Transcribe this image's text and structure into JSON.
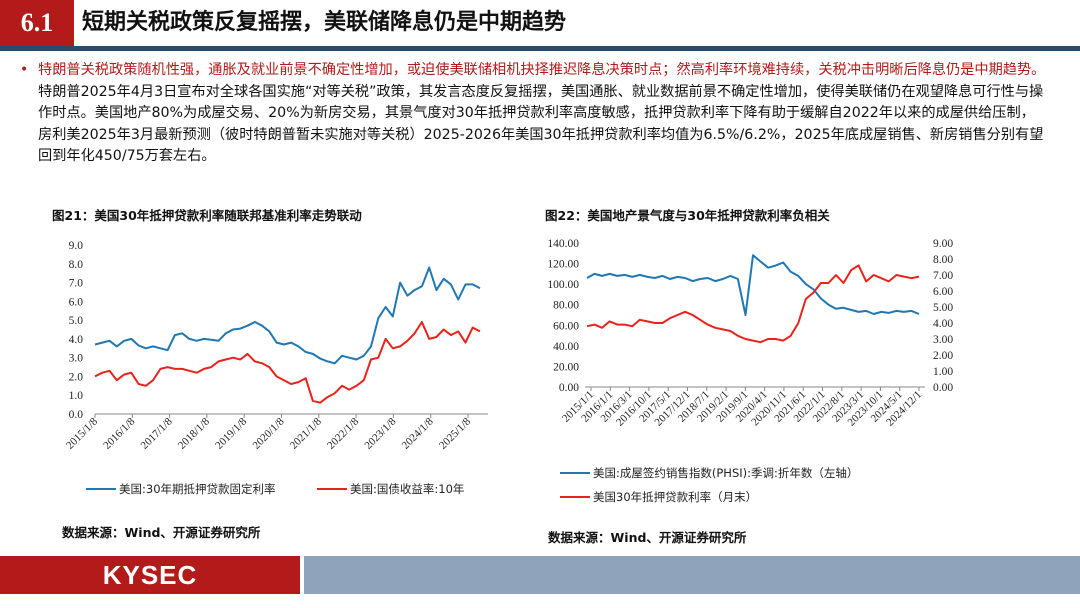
{
  "header": {
    "section_number": "6.1",
    "title": "短期关税政策反复摇摆，美联储降息仍是中期趋势"
  },
  "paragraph": {
    "bullet": "•",
    "highlight": "特朗普关税政策随机性强，通胀及就业前景不确定性增加，或迫使美联储相机抉择推迟降息决策时点；然高利率环境难持续，关税冲击明晰后降息仍是中期趋势。",
    "rest": "特朗普2025年4月3日宣布对全球各国实施“对等关税”政策，其发言态度反复摇摆，美国通胀、就业数据前景不确定性增加，使得美联储仍在观望降息可行性与操作时点。美国地产80%为成屋交易、20%为新房交易，其景气度对30年抵押贷款利率高度敏感，抵押贷款利率下降有助于缓解自2022年以来的成屋供给压制，房利美2025年3月最新预测（彼时特朗普暂未实施对等关税）2025-2026年美国30年抵押贷款利率均值为6.5%/6.2%，2025年底成屋销售、新房销售分别有望回到年化450/75万套左右。"
  },
  "figure21": {
    "title": "图21：美国30年抵押贷款利率随联邦基准利率走势联动",
    "source": "数据来源：Wind、开源证券研究所"
  },
  "figure22": {
    "title": "图22：美国地产景气度与30年抵押贷款利率负相关",
    "source": "数据来源：Wind、开源证券研究所"
  },
  "footer": {
    "logo": "KYSEC"
  },
  "colors": {
    "blue": "#1f77b4",
    "red": "#e8231b",
    "brand_red": "#b31b1b",
    "navy": "#2b4a6f"
  },
  "chart_data": [
    {
      "type": "line",
      "title": "图21：美国30年抵押贷款利率随联邦基准利率走势联动",
      "x_ticks": [
        "2015/1/8",
        "2016/1/8",
        "2017/1/8",
        "2018/1/8",
        "2019/1/8",
        "2020/1/8",
        "2021/1/8",
        "2022/1/8",
        "2023/1/8",
        "2024/1/8",
        "2025/1/8"
      ],
      "ylim": [
        0,
        9
      ],
      "y_ticks": [
        "0.0",
        "1.0",
        "2.0",
        "3.0",
        "4.0",
        "5.0",
        "6.0",
        "7.0",
        "8.0",
        "9.0"
      ],
      "series": [
        {
          "name": "美国:30年期抵押贷款固定利率",
          "color": "#1f77b4",
          "values": [
            3.7,
            3.8,
            3.9,
            3.6,
            3.9,
            4.0,
            3.65,
            3.5,
            3.6,
            3.5,
            3.4,
            4.2,
            4.3,
            4.0,
            3.9,
            4.0,
            3.95,
            3.9,
            4.3,
            4.5,
            4.55,
            4.7,
            4.9,
            4.7,
            4.4,
            3.8,
            3.7,
            3.8,
            3.6,
            3.3,
            3.2,
            2.95,
            2.8,
            2.7,
            3.1,
            3.0,
            2.9,
            3.1,
            3.6,
            5.1,
            5.7,
            5.2,
            7.0,
            6.3,
            6.6,
            6.8,
            7.8,
            6.6,
            7.2,
            6.9,
            6.1,
            6.9,
            6.9,
            6.7
          ]
        },
        {
          "name": "美国:国债收益率:10年",
          "color": "#e8231b",
          "values": [
            2.0,
            2.2,
            2.3,
            1.8,
            2.1,
            2.2,
            1.6,
            1.5,
            1.8,
            2.4,
            2.5,
            2.4,
            2.4,
            2.3,
            2.2,
            2.4,
            2.5,
            2.8,
            2.9,
            3.0,
            2.9,
            3.2,
            2.8,
            2.7,
            2.5,
            2.0,
            1.8,
            1.6,
            1.7,
            1.9,
            0.7,
            0.6,
            0.9,
            1.1,
            1.5,
            1.3,
            1.5,
            1.8,
            2.9,
            3.0,
            4.0,
            3.5,
            3.6,
            3.9,
            4.3,
            4.9,
            4.0,
            4.1,
            4.5,
            4.2,
            4.4,
            3.8,
            4.6,
            4.4
          ]
        }
      ]
    },
    {
      "type": "line",
      "title": "图22：美国地产景气度与30年抵押贷款利率负相关",
      "x_ticks": [
        "2015/1/1",
        "2016/1/1",
        "2016/3/1",
        "2016/10/1",
        "2017/5/1",
        "2017/12/1",
        "2018/7/1",
        "2019/2/1",
        "2019/9/1",
        "2020/4/1",
        "2020/11/1",
        "2021/6/1",
        "2022/1/1",
        "2022/8/1",
        "2023/3/1",
        "2023/10/1",
        "2024/5/1",
        "2024/12/1"
      ],
      "ylim_left": [
        0,
        140
      ],
      "ylim_right": [
        0,
        9
      ],
      "y_ticks_left": [
        "0.00",
        "20.00",
        "40.00",
        "60.00",
        "80.00",
        "100.00",
        "120.00",
        "140.00"
      ],
      "y_ticks_right": [
        "0.00",
        "1.00",
        "2.00",
        "3.00",
        "4.00",
        "5.00",
        "6.00",
        "7.00",
        "8.00",
        "9.00"
      ],
      "series": [
        {
          "name": "美国:成屋签约销售指数(PHSI):季调:折年数（左轴）",
          "axis": "left",
          "color": "#1f77b4",
          "values": [
            106,
            110,
            108,
            110,
            108,
            109,
            107,
            109,
            107,
            106,
            108,
            105,
            107,
            106,
            103,
            105,
            106,
            103,
            105,
            108,
            105,
            70,
            128,
            122,
            116,
            118,
            121,
            112,
            108,
            100,
            95,
            86,
            80,
            76,
            77,
            75,
            73,
            74,
            71,
            73,
            72,
            74,
            73,
            74,
            71
          ]
        },
        {
          "name": "美国30年抵押贷款利率（月末）",
          "axis": "right",
          "color": "#e8231b",
          "values": [
            3.8,
            3.9,
            3.7,
            4.1,
            3.9,
            3.9,
            3.8,
            4.2,
            4.1,
            4.0,
            4.0,
            4.3,
            4.5,
            4.7,
            4.5,
            4.2,
            3.9,
            3.7,
            3.6,
            3.5,
            3.2,
            3.0,
            2.9,
            2.8,
            3.0,
            3.0,
            2.9,
            3.2,
            4.0,
            5.5,
            5.9,
            6.5,
            6.5,
            7.0,
            6.5,
            7.3,
            7.6,
            6.6,
            7.0,
            6.8,
            6.6,
            7.0,
            6.9,
            6.8,
            6.9
          ]
        }
      ]
    }
  ]
}
